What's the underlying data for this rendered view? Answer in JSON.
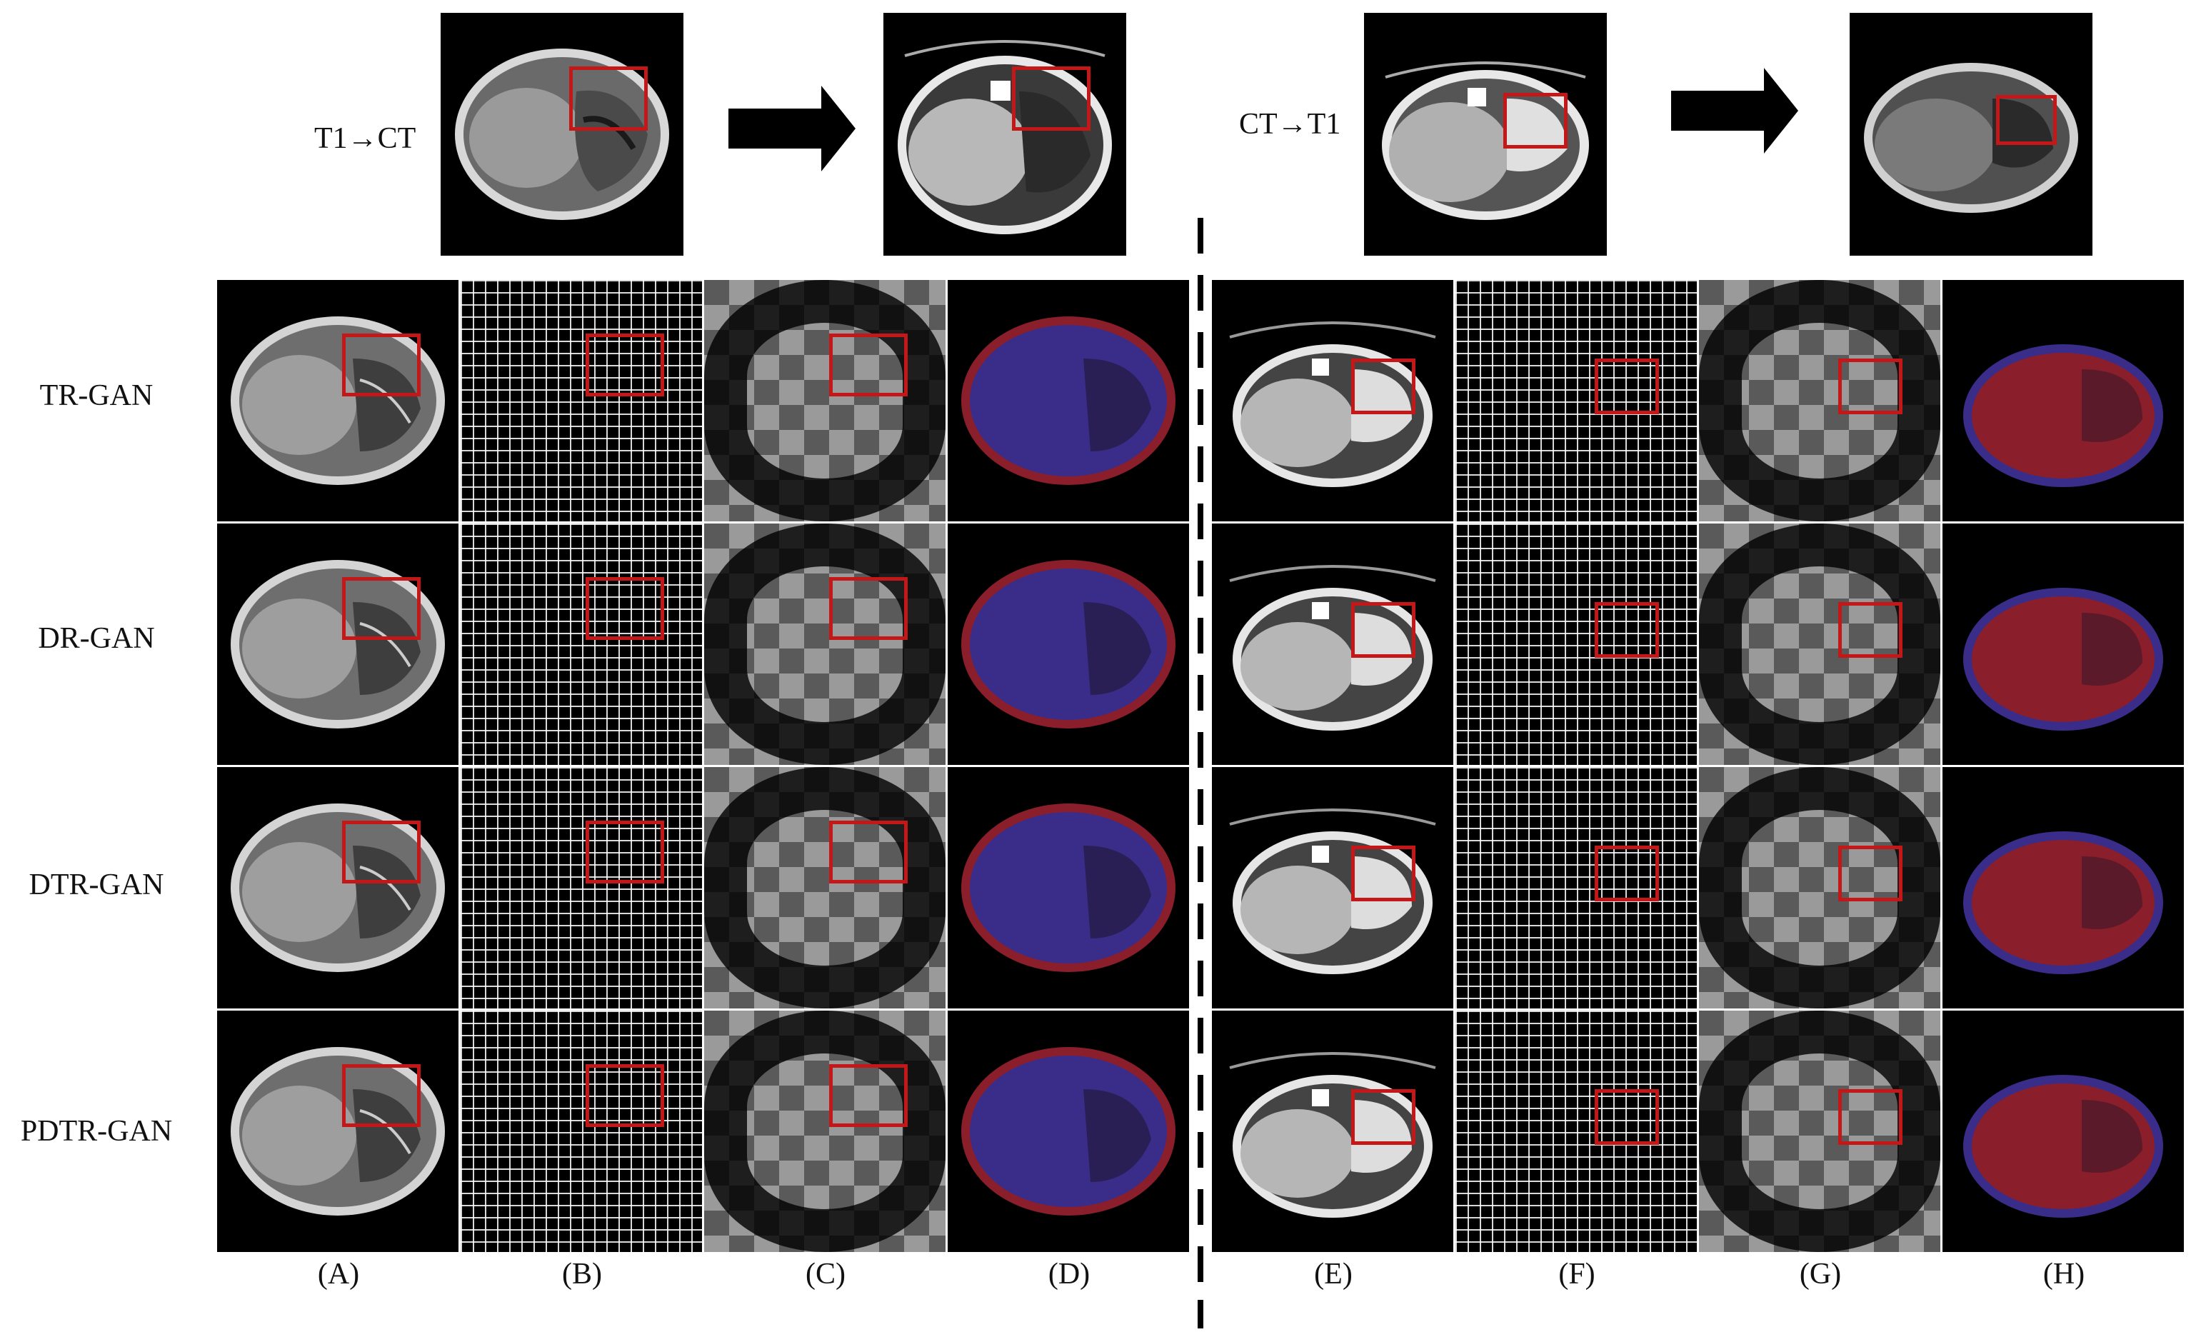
{
  "figure": {
    "top_labels": {
      "left": "T1→CT",
      "right": "CT→T1"
    },
    "rows": [
      "TR-GAN",
      "DR-GAN",
      "DTR-GAN",
      "PDTR-GAN"
    ],
    "columns": [
      "(A)",
      "(B)",
      "(C)",
      "(D)",
      "(E)",
      "(F)",
      "(G)",
      "(H)"
    ]
  },
  "colors": {
    "highlight_box": "#c41818",
    "fusion_red": "#8a1e2a",
    "fusion_blue": "#3a2d8a",
    "background": "#ffffff",
    "panel_bg": "#000000"
  }
}
